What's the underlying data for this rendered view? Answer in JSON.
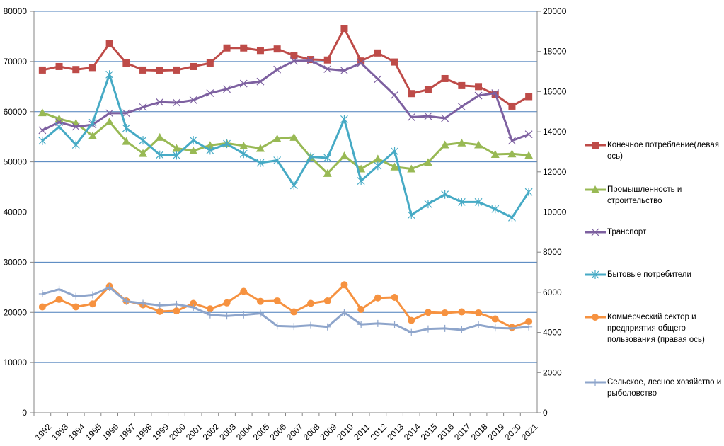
{
  "chart_data": {
    "type": "line",
    "x": [
      "1992",
      "1993",
      "1994",
      "1995",
      "1996",
      "1997",
      "1998",
      "1999",
      "2000",
      "2001",
      "2002",
      "2003",
      "2004",
      "2005",
      "2006",
      "2007",
      "2008",
      "2009",
      "2010",
      "2011",
      "2012",
      "2013",
      "2014",
      "2015",
      "2016",
      "2017",
      "2018",
      "2019",
      "2020",
      "2021"
    ],
    "left_axis": {
      "range": [
        0,
        80000
      ],
      "ticks": [
        "0",
        "10000",
        "20000",
        "30000",
        "40000",
        "50000",
        "60000",
        "70000",
        "80000"
      ]
    },
    "right_axis": {
      "range": [
        0,
        20000
      ],
      "ticks": [
        "0",
        "2000",
        "4000",
        "6000",
        "8000",
        "10000",
        "12000",
        "14000",
        "16000",
        "18000",
        "20000"
      ]
    },
    "grid": "horizontal",
    "legend_position": "right",
    "series": [
      {
        "name": "Конечное потребление(левая  ось)",
        "axis": "left",
        "color": "#BE4B48",
        "marker": "square",
        "values": [
          68300,
          69000,
          68400,
          68800,
          73600,
          69700,
          68300,
          68200,
          68300,
          69000,
          69700,
          72700,
          72700,
          72200,
          72500,
          71200,
          70400,
          70300,
          76600,
          70100,
          71700,
          69900,
          63600,
          64400,
          66600,
          65200,
          65000,
          63400,
          61100,
          63000
        ]
      },
      {
        "name": "Промышленность и строительство",
        "axis": "left",
        "color": "#98B954",
        "marker": "triangle",
        "values": [
          59800,
          58600,
          57700,
          55200,
          58000,
          54100,
          51700,
          54900,
          52700,
          52200,
          53300,
          53700,
          53200,
          52700,
          54600,
          54900,
          50900,
          47700,
          51200,
          48600,
          50600,
          49000,
          48600,
          49900,
          53400,
          53800,
          53400,
          51500,
          51600,
          51300
        ]
      },
      {
        "name": "Транспорт",
        "axis": "left",
        "color": "#7D60A0",
        "marker": "x",
        "values": [
          56300,
          57900,
          57000,
          57400,
          59700,
          59700,
          60900,
          61900,
          61800,
          62300,
          63700,
          64500,
          65600,
          66000,
          68400,
          70100,
          70200,
          68500,
          68200,
          69700,
          66500,
          63300,
          58900,
          59100,
          58700,
          61000,
          63200,
          63700,
          54200,
          55500
        ]
      },
      {
        "name": "Бытовые потребители",
        "axis": "right",
        "color": "#46AAC5",
        "marker": "star",
        "values": [
          13550,
          14250,
          13350,
          14450,
          16850,
          14175,
          13575,
          12850,
          12825,
          13575,
          13075,
          13400,
          12900,
          12450,
          12575,
          11325,
          12750,
          12700,
          14625,
          11550,
          12300,
          13025,
          9850,
          10400,
          10875,
          10500,
          10500,
          10150,
          9725,
          11000
        ]
      },
      {
        "name": "Коммерческий сектор и предприятия общего пользования (правая ось)",
        "axis": "right",
        "color": "#F69240",
        "marker": "circle",
        "values": [
          5275,
          5650,
          5275,
          5425,
          6300,
          5575,
          5375,
          5050,
          5075,
          5450,
          5175,
          5475,
          6050,
          5550,
          5575,
          5025,
          5450,
          5575,
          6375,
          5150,
          5725,
          5750,
          4600,
          5000,
          4975,
          5025,
          4975,
          4675,
          4250,
          4550
        ]
      },
      {
        "name": "Сельское, лесное хозяйство и рыболовство",
        "axis": "right",
        "color": "#8EA5CB",
        "marker": "plus",
        "values": [
          5925,
          6150,
          5800,
          5875,
          6250,
          5550,
          5450,
          5350,
          5400,
          5250,
          4875,
          4825,
          4875,
          4950,
          4325,
          4300,
          4350,
          4275,
          5000,
          4400,
          4450,
          4400,
          4000,
          4175,
          4200,
          4125,
          4375,
          4225,
          4200,
          4275
        ]
      }
    ]
  }
}
